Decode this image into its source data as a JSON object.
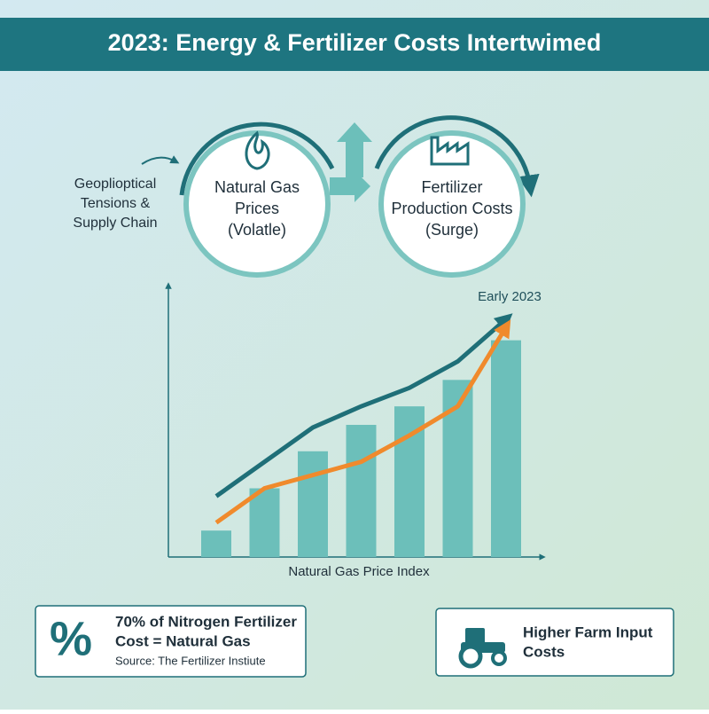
{
  "header": {
    "title": "2023: Energy & Fertilizer Costs Intertwimed"
  },
  "flow": {
    "driver": [
      "Geopliοptical",
      "Tensions &",
      "Supply Chain"
    ],
    "nodes": [
      {
        "label": [
          "Natural Gas",
          "Prices",
          "(Volatle)"
        ]
      },
      {
        "label": [
          "Fertilizer",
          "Production Costs",
          "(Surge)"
        ]
      }
    ]
  },
  "chart_data": {
    "type": "bar",
    "x_label": "Natural Gas Price Index",
    "annotation": "Early 2023",
    "categories": [
      null,
      null,
      null,
      null,
      null,
      null,
      null
    ],
    "ylim": [
      0,
      100
    ],
    "bar_color": "#6cbfba",
    "values": [
      10,
      26,
      40,
      50,
      57,
      67,
      82
    ],
    "lines": [
      {
        "color": "#1f6f78",
        "values": [
          23,
          36,
          49,
          57,
          64,
          74,
          90
        ]
      },
      {
        "color": "#f08a2c",
        "values": [
          13,
          26,
          31,
          36,
          46,
          57,
          87
        ]
      }
    ]
  },
  "facts": [
    {
      "icon": "%",
      "lines": [
        "70% of Nitrogen Fertilizer",
        "Cost = Natural Gas"
      ],
      "source": "Source: The Fertilizer Instiute"
    },
    {
      "lines": [
        "Higher Farm Input",
        "Costs"
      ]
    }
  ]
}
